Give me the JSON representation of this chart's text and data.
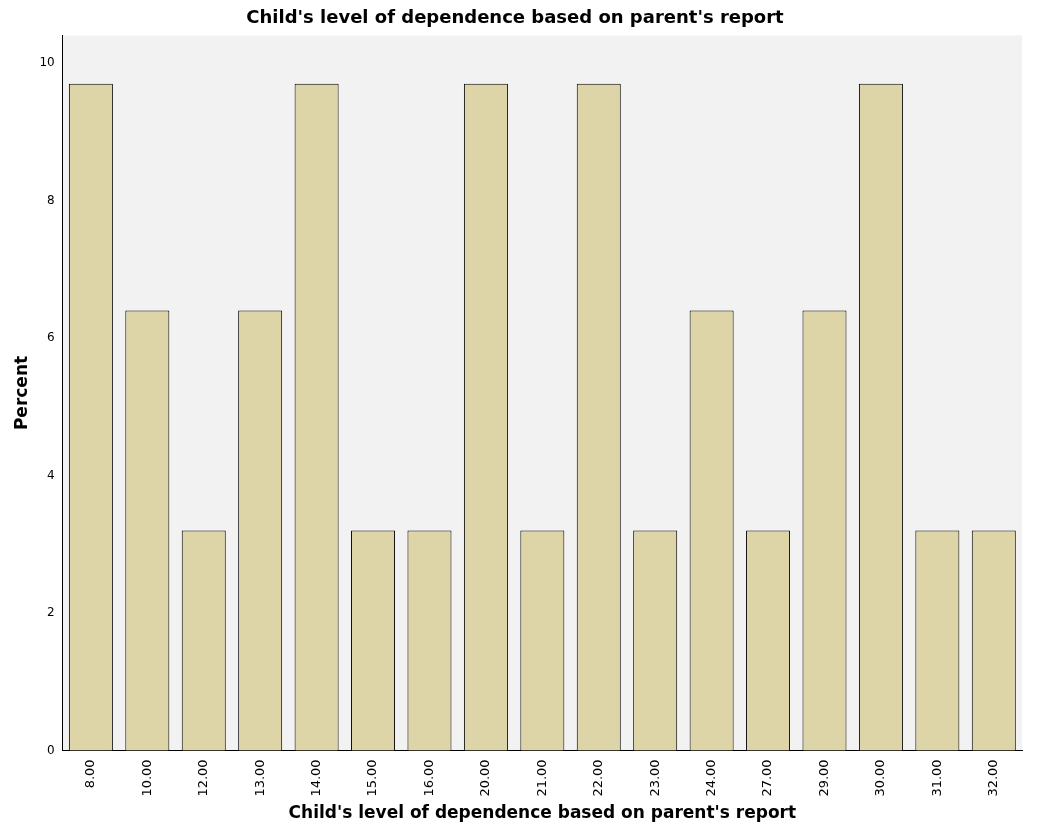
{
  "chart_data": {
    "type": "bar",
    "title": "Child's level of dependence based on parent's report",
    "xlabel": "Child's level of dependence based on parent's report",
    "ylabel": "Percent",
    "categories": [
      "8.00",
      "10.00",
      "12.00",
      "13.00",
      "14.00",
      "15.00",
      "16.00",
      "20.00",
      "21.00",
      "22.00",
      "23.00",
      "24.00",
      "27.00",
      "29.00",
      "30.00",
      "31.00",
      "32.00"
    ],
    "values": [
      9.7,
      6.4,
      3.2,
      6.4,
      9.7,
      3.2,
      3.2,
      9.7,
      3.2,
      9.7,
      3.2,
      6.4,
      3.2,
      6.4,
      9.7,
      3.2,
      3.2
    ],
    "color": "#ddd5a8",
    "ylim": [
      0,
      10.4
    ],
    "yticks": [
      0,
      2,
      4,
      6,
      8,
      10
    ],
    "grid": false,
    "legend": false
  }
}
